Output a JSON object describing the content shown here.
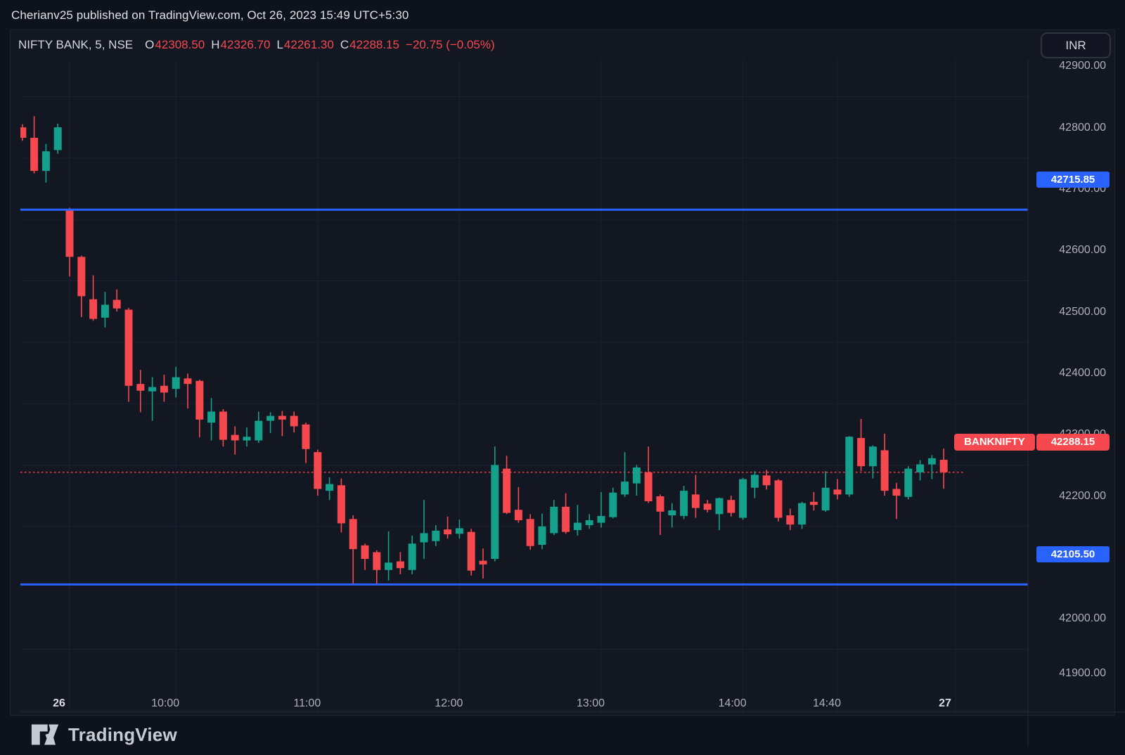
{
  "attribution": "Cherianv25 published on TradingView.com, Oct 26, 2023 15:49 UTC+5:30",
  "legend": {
    "symbol_title": "NIFTY BANK, 5, NSE",
    "o_label": "O",
    "o": "42308.50",
    "h_label": "H",
    "h": "42326.70",
    "l_label": "L",
    "l": "42261.30",
    "c_label": "C",
    "c": "42288.15",
    "change": "−20.75 (−0.05%)"
  },
  "currency_button": "INR",
  "footer": {
    "brand": "TradingView"
  },
  "colors": {
    "up": "#15a08c",
    "down": "#f5484f",
    "level_line": "#2962ff",
    "price_line": "#f23645",
    "grid": "#1c2030",
    "axis_border": "#242a38",
    "panel_bg": "#131722"
  },
  "chart_data": {
    "type": "candlestick",
    "symbol": "NIFTY BANK",
    "interval": "5",
    "exchange": "NSE",
    "currency": "INR",
    "last_bar": {
      "open": 42308.5,
      "high": 42326.7,
      "low": 42261.3,
      "close": 42288.15,
      "change": -20.75,
      "change_pct": -0.05
    },
    "levels": [
      {
        "value": 42715.85,
        "label": "42715.85"
      },
      {
        "value": 42105.5,
        "label": "42105.50"
      }
    ],
    "price_line": {
      "name": "BANKNIFTY",
      "value": 42288.15,
      "label": "42288.15"
    },
    "y_axis_labels": [
      {
        "price": 42900,
        "label": "42900.00"
      },
      {
        "price": 42800,
        "label": "42800.00"
      },
      {
        "price": 42700,
        "label": "42700.00"
      },
      {
        "price": 42600,
        "label": "42600.00"
      },
      {
        "price": 42500,
        "label": "42500.00"
      },
      {
        "price": 42400,
        "label": "42400.00"
      },
      {
        "price": 42300,
        "label": "42300.00"
      },
      {
        "price": 42200,
        "label": "42200.00"
      },
      {
        "price": 42000,
        "label": "42000.00"
      },
      {
        "price": 41900,
        "label": "41900.00"
      }
    ],
    "x_axis_labels": [
      {
        "label": "26",
        "bar": 4,
        "bold": true
      },
      {
        "label": "10:00",
        "bar": 13,
        "bold": false
      },
      {
        "label": "11:00",
        "bar": 25,
        "bold": false
      },
      {
        "label": "12:00",
        "bar": 37,
        "bold": false
      },
      {
        "label": "13:00",
        "bar": 49,
        "bold": false
      },
      {
        "label": "14:00",
        "bar": 61,
        "bold": false
      },
      {
        "label": "14:40",
        "bar": 69,
        "bold": false
      },
      {
        "label": "27",
        "bar": 79,
        "bold": true
      }
    ],
    "ohlc_note": "bars ordered left to right, values [open, high, low, close]",
    "candles": [
      [
        42850,
        42855,
        42828,
        42833
      ],
      [
        42833,
        42868,
        42775,
        42779
      ],
      [
        42779,
        42823,
        42760,
        42811
      ],
      [
        42813,
        42856,
        42807,
        42850
      ],
      [
        42715,
        42719,
        42607,
        42639
      ],
      [
        42639,
        42641,
        42541,
        42575
      ],
      [
        42570,
        42609,
        42535,
        42538
      ],
      [
        42540,
        42582,
        42524,
        42561
      ],
      [
        42569,
        42586,
        42550,
        42555
      ],
      [
        42553,
        42556,
        42403,
        42429
      ],
      [
        42432,
        42455,
        42386,
        42421
      ],
      [
        42420,
        42443,
        42372,
        42427
      ],
      [
        42429,
        42447,
        42403,
        42418
      ],
      [
        42424,
        42460,
        42410,
        42443
      ],
      [
        42441,
        42449,
        42392,
        42432
      ],
      [
        42437,
        42439,
        42345,
        42374
      ],
      [
        42369,
        42409,
        42340,
        42387
      ],
      [
        42387,
        42391,
        42330,
        42341
      ],
      [
        42349,
        42363,
        42317,
        42340
      ],
      [
        42340,
        42361,
        42330,
        42346
      ],
      [
        42340,
        42387,
        42336,
        42372
      ],
      [
        42372,
        42386,
        42352,
        42380
      ],
      [
        42380,
        42388,
        42347,
        42374
      ],
      [
        42380,
        42387,
        42353,
        42363
      ],
      [
        42366,
        42369,
        42303,
        42326
      ],
      [
        42321,
        42325,
        42250,
        42261
      ],
      [
        42258,
        42280,
        42243,
        42269
      ],
      [
        42267,
        42278,
        42190,
        42205
      ],
      [
        42212,
        42218,
        42106,
        42163
      ],
      [
        42169,
        42172,
        42129,
        42147
      ],
      [
        42158,
        42161,
        42104,
        42129
      ],
      [
        42129,
        42192,
        42112,
        42141
      ],
      [
        42143,
        42158,
        42122,
        42132
      ],
      [
        42129,
        42185,
        42122,
        42172
      ],
      [
        42174,
        42243,
        42147,
        42189
      ],
      [
        42176,
        42202,
        42168,
        42193
      ],
      [
        42195,
        42216,
        42180,
        42187
      ],
      [
        42188,
        42211,
        42180,
        42197
      ],
      [
        42191,
        42196,
        42120,
        42128
      ],
      [
        42144,
        42164,
        42115,
        42138
      ],
      [
        42147,
        42330,
        42143,
        42300
      ],
      [
        42294,
        42315,
        42220,
        42222
      ],
      [
        42227,
        42264,
        42206,
        42210
      ],
      [
        42212,
        42220,
        42162,
        42168
      ],
      [
        42170,
        42221,
        42163,
        42200
      ],
      [
        42189,
        42243,
        42186,
        42232
      ],
      [
        42232,
        42254,
        42188,
        42191
      ],
      [
        42194,
        42235,
        42185,
        42206
      ],
      [
        42202,
        42220,
        42196,
        42210
      ],
      [
        42206,
        42256,
        42198,
        42217
      ],
      [
        42215,
        42263,
        42213,
        42255
      ],
      [
        42252,
        42321,
        42248,
        42273
      ],
      [
        42270,
        42300,
        42250,
        42296
      ],
      [
        42288,
        42330,
        42238,
        42241
      ],
      [
        42249,
        42252,
        42186,
        42224
      ],
      [
        42218,
        42238,
        42198,
        42226
      ],
      [
        42217,
        42266,
        42212,
        42258
      ],
      [
        42252,
        42284,
        42214,
        42230
      ],
      [
        42237,
        42243,
        42223,
        42227
      ],
      [
        42220,
        42247,
        42194,
        42246
      ],
      [
        42243,
        42250,
        42216,
        42222
      ],
      [
        42214,
        42279,
        42211,
        42277
      ],
      [
        42263,
        42290,
        42246,
        42284
      ],
      [
        42283,
        42292,
        42260,
        42267
      ],
      [
        42275,
        42277,
        42208,
        42214
      ],
      [
        42218,
        42229,
        42194,
        42203
      ],
      [
        42203,
        42240,
        42196,
        42238
      ],
      [
        42240,
        42256,
        42226,
        42235
      ],
      [
        42226,
        42290,
        42224,
        42263
      ],
      [
        42260,
        42277,
        42244,
        42252
      ],
      [
        42252,
        42347,
        42248,
        42346
      ],
      [
        42344,
        42375,
        42290,
        42298
      ],
      [
        42298,
        42332,
        42278,
        42330
      ],
      [
        42324,
        42351,
        42250,
        42258
      ],
      [
        42261,
        42271,
        42212,
        42250
      ],
      [
        42248,
        42298,
        42244,
        42294
      ],
      [
        42288,
        42308,
        42275,
        42301
      ],
      [
        42301,
        42316,
        42277,
        42311
      ],
      [
        42308.5,
        42326.7,
        42261.3,
        42288.15
      ]
    ]
  }
}
